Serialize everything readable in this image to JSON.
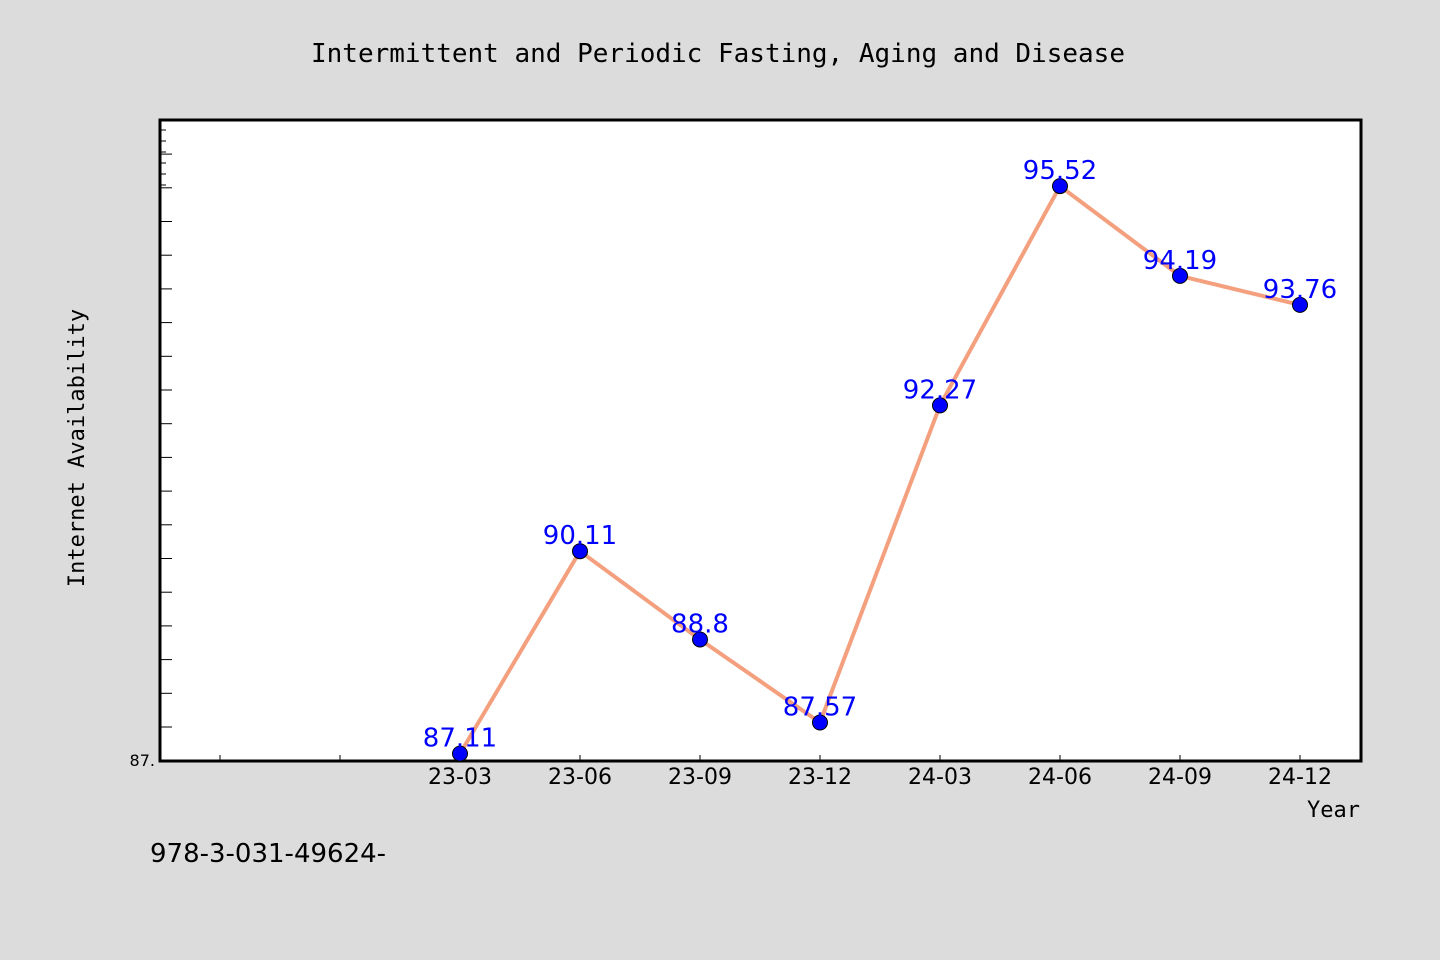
{
  "chart_data": {
    "type": "line",
    "title": "Intermittent and Periodic Fasting, Aging and Disease",
    "xlabel": "Year",
    "ylabel": "Internet Availability",
    "categories": [
      "23-03",
      "23-06",
      "23-09",
      "23-12",
      "24-03",
      "24-06",
      "24-09",
      "24-12"
    ],
    "values": [
      87.11,
      90.11,
      88.8,
      87.57,
      92.27,
      95.52,
      94.19,
      93.76
    ],
    "data_labels": [
      "87.11",
      "90.11",
      "88.8",
      "87.57",
      "92.27",
      "95.52",
      "94.19",
      "93.76"
    ],
    "y_tick_label": "87.",
    "ylim": [
      87.0,
      96.5
    ],
    "grid": false,
    "legend": "none",
    "line_color": "#f4a07e",
    "marker_color": "#0000ff",
    "label_color": "#0000ff"
  },
  "footer": {
    "text": "978-3-031-49624-"
  }
}
